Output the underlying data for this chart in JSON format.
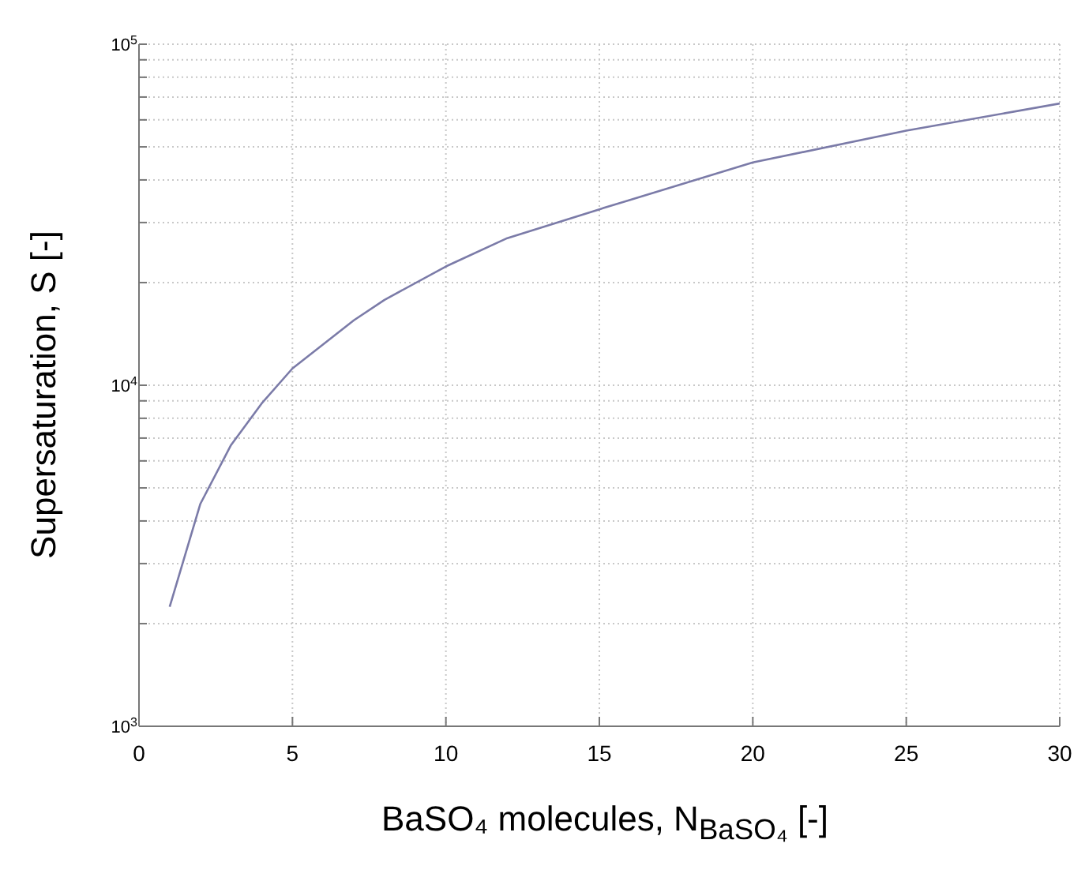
{
  "chart_data": {
    "type": "line",
    "xlabel": "BaSO₄ molecules, N$_{BaSO₄}$ [-]",
    "ylabel": "Supersaturation, S [-]",
    "x": [
      1,
      2,
      3,
      4,
      5,
      7,
      8,
      10,
      12,
      15,
      20,
      25,
      30
    ],
    "series": [
      {
        "color": "#7b7ba8",
        "values": [
          2240,
          4490,
          6680,
          8850,
          11200,
          15500,
          17800,
          22300,
          27000,
          32800,
          45000,
          55800,
          67000
        ]
      }
    ],
    "xlim": [
      0,
      30
    ],
    "xticks": [
      0,
      5,
      10,
      15,
      20,
      25,
      30
    ],
    "ylim": [
      1000,
      100000
    ],
    "yticks": [
      {
        "value": 1000,
        "label": "10$^{3}$"
      },
      {
        "value": 2000,
        "label": null
      },
      {
        "value": 3000,
        "label": null
      },
      {
        "value": 4000,
        "label": null
      },
      {
        "value": 5000,
        "label": null
      },
      {
        "value": 6000,
        "label": null
      },
      {
        "value": 7000,
        "label": null
      },
      {
        "value": 8000,
        "label": null
      },
      {
        "value": 9000,
        "label": null
      },
      {
        "value": 10000,
        "label": "10$^{4}$"
      },
      {
        "value": 20000,
        "label": null
      },
      {
        "value": 30000,
        "label": null
      },
      {
        "value": 40000,
        "label": null
      },
      {
        "value": 50000,
        "label": null
      },
      {
        "value": 60000,
        "label": null
      },
      {
        "value": 70000,
        "label": null
      },
      {
        "value": 80000,
        "label": null
      },
      {
        "value": 90000,
        "label": null
      },
      {
        "value": 100000,
        "label": "10$^{5}$"
      }
    ],
    "log": "y",
    "grid": true,
    "marker": "none",
    "line_style": "solid"
  }
}
